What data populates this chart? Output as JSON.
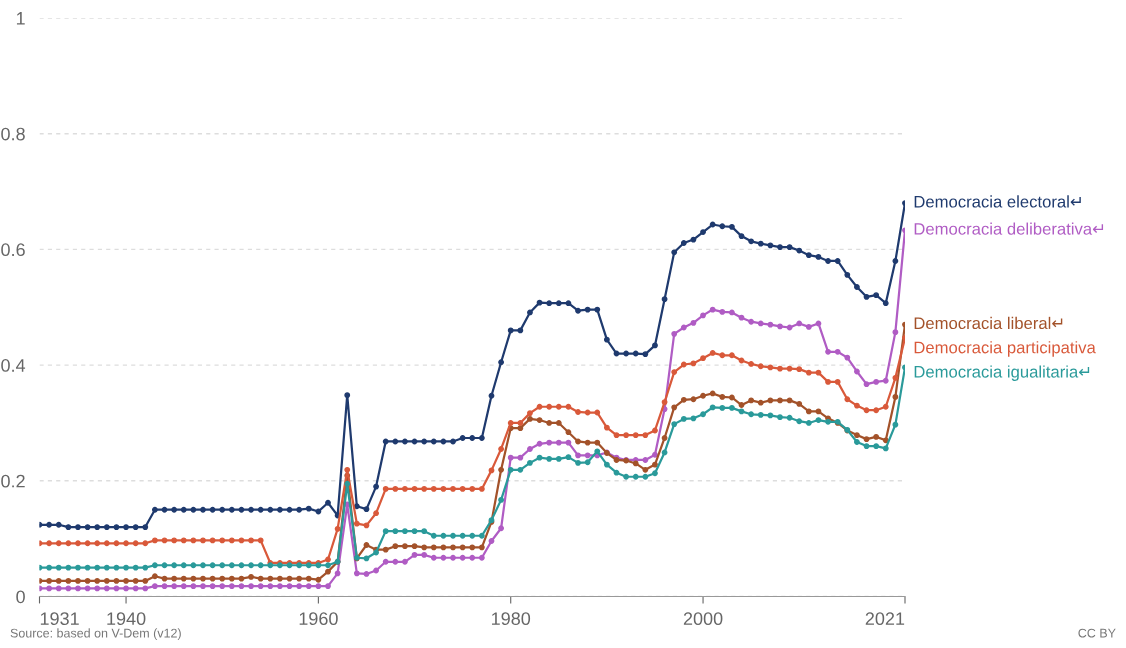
{
  "chart_data": {
    "type": "line",
    "x": [
      1931,
      1932,
      1933,
      1934,
      1935,
      1936,
      1937,
      1938,
      1939,
      1940,
      1941,
      1942,
      1943,
      1944,
      1945,
      1946,
      1947,
      1948,
      1949,
      1950,
      1951,
      1952,
      1953,
      1954,
      1955,
      1956,
      1957,
      1958,
      1959,
      1960,
      1961,
      1962,
      1963,
      1964,
      1965,
      1966,
      1967,
      1968,
      1969,
      1970,
      1971,
      1972,
      1973,
      1974,
      1975,
      1976,
      1977,
      1978,
      1979,
      1980,
      1981,
      1982,
      1983,
      1984,
      1985,
      1986,
      1987,
      1988,
      1989,
      1990,
      1991,
      1992,
      1993,
      1994,
      1995,
      1996,
      1997,
      1998,
      1999,
      2000,
      2001,
      2002,
      2003,
      2004,
      2005,
      2006,
      2007,
      2008,
      2009,
      2010,
      2011,
      2012,
      2013,
      2014,
      2015,
      2016,
      2017,
      2018,
      2019,
      2020,
      2021
    ],
    "series": [
      {
        "name": "Democracia electoral↵",
        "color": "#1f3a6e",
        "values": [
          0.124,
          0.124,
          0.124,
          0.12,
          0.12,
          0.12,
          0.12,
          0.12,
          0.12,
          0.12,
          0.12,
          0.12,
          0.15,
          0.15,
          0.15,
          0.15,
          0.15,
          0.15,
          0.15,
          0.15,
          0.15,
          0.15,
          0.15,
          0.15,
          0.15,
          0.15,
          0.15,
          0.15,
          0.152,
          0.147,
          0.162,
          0.14,
          0.348,
          0.156,
          0.151,
          0.19,
          0.268,
          0.268,
          0.268,
          0.268,
          0.268,
          0.268,
          0.268,
          0.268,
          0.274,
          0.274,
          0.274,
          0.347,
          0.405,
          0.46,
          0.46,
          0.491,
          0.508,
          0.507,
          0.507,
          0.507,
          0.494,
          0.496,
          0.496,
          0.444,
          0.42,
          0.42,
          0.42,
          0.419,
          0.434,
          0.514,
          0.595,
          0.611,
          0.617,
          0.63,
          0.643,
          0.64,
          0.639,
          0.623,
          0.614,
          0.61,
          0.607,
          0.604,
          0.604,
          0.598,
          0.59,
          0.587,
          0.58,
          0.58,
          0.556,
          0.535,
          0.518,
          0.521,
          0.507,
          0.58,
          0.68
        ]
      },
      {
        "name": "Democracia deliberativa↵",
        "color": "#b05cc4",
        "values": [
          0.014,
          0.014,
          0.014,
          0.014,
          0.014,
          0.014,
          0.014,
          0.014,
          0.014,
          0.014,
          0.014,
          0.014,
          0.018,
          0.018,
          0.018,
          0.018,
          0.018,
          0.018,
          0.018,
          0.018,
          0.018,
          0.018,
          0.018,
          0.018,
          0.018,
          0.018,
          0.018,
          0.018,
          0.018,
          0.018,
          0.018,
          0.04,
          0.159,
          0.04,
          0.039,
          0.045,
          0.06,
          0.06,
          0.06,
          0.072,
          0.072,
          0.067,
          0.067,
          0.067,
          0.067,
          0.067,
          0.067,
          0.096,
          0.118,
          0.24,
          0.24,
          0.255,
          0.264,
          0.266,
          0.266,
          0.266,
          0.244,
          0.244,
          0.244,
          0.249,
          0.24,
          0.236,
          0.236,
          0.236,
          0.245,
          0.324,
          0.454,
          0.465,
          0.473,
          0.486,
          0.496,
          0.492,
          0.491,
          0.482,
          0.475,
          0.472,
          0.47,
          0.467,
          0.465,
          0.472,
          0.466,
          0.472,
          0.423,
          0.423,
          0.413,
          0.389,
          0.367,
          0.371,
          0.373,
          0.457,
          0.633
        ]
      },
      {
        "name": "Democracia liberal↵",
        "color": "#a3522a",
        "values": [
          0.027,
          0.027,
          0.027,
          0.027,
          0.027,
          0.027,
          0.027,
          0.027,
          0.027,
          0.027,
          0.027,
          0.027,
          0.035,
          0.031,
          0.031,
          0.031,
          0.031,
          0.031,
          0.031,
          0.031,
          0.031,
          0.031,
          0.034,
          0.031,
          0.031,
          0.031,
          0.031,
          0.031,
          0.031,
          0.029,
          0.043,
          0.06,
          0.209,
          0.066,
          0.089,
          0.081,
          0.081,
          0.087,
          0.087,
          0.087,
          0.085,
          0.085,
          0.085,
          0.085,
          0.085,
          0.085,
          0.085,
          0.129,
          0.219,
          0.291,
          0.291,
          0.307,
          0.305,
          0.3,
          0.3,
          0.284,
          0.268,
          0.266,
          0.266,
          0.248,
          0.236,
          0.235,
          0.23,
          0.219,
          0.228,
          0.274,
          0.327,
          0.34,
          0.341,
          0.347,
          0.351,
          0.345,
          0.344,
          0.331,
          0.339,
          0.335,
          0.339,
          0.339,
          0.339,
          0.333,
          0.32,
          0.32,
          0.308,
          0.3,
          0.287,
          0.279,
          0.272,
          0.276,
          0.27,
          0.345,
          0.47
        ]
      },
      {
        "name": "Democracia participativa",
        "color": "#d9593a",
        "values": [
          0.092,
          0.092,
          0.092,
          0.092,
          0.092,
          0.092,
          0.092,
          0.092,
          0.092,
          0.092,
          0.092,
          0.092,
          0.097,
          0.097,
          0.097,
          0.097,
          0.097,
          0.097,
          0.097,
          0.097,
          0.097,
          0.097,
          0.097,
          0.097,
          0.058,
          0.058,
          0.058,
          0.058,
          0.058,
          0.058,
          0.064,
          0.117,
          0.219,
          0.126,
          0.123,
          0.144,
          0.186,
          0.186,
          0.186,
          0.186,
          0.186,
          0.186,
          0.186,
          0.186,
          0.186,
          0.186,
          0.186,
          0.218,
          0.255,
          0.3,
          0.3,
          0.317,
          0.328,
          0.328,
          0.328,
          0.328,
          0.319,
          0.318,
          0.318,
          0.292,
          0.279,
          0.279,
          0.279,
          0.279,
          0.287,
          0.336,
          0.388,
          0.401,
          0.403,
          0.412,
          0.421,
          0.417,
          0.417,
          0.408,
          0.402,
          0.398,
          0.396,
          0.394,
          0.394,
          0.393,
          0.387,
          0.387,
          0.371,
          0.371,
          0.341,
          0.33,
          0.322,
          0.322,
          0.328,
          0.378,
          0.447
        ]
      },
      {
        "name": "Democracia igualitaria↵",
        "color": "#2a9a9a",
        "values": [
          0.05,
          0.05,
          0.05,
          0.05,
          0.05,
          0.05,
          0.05,
          0.05,
          0.05,
          0.05,
          0.05,
          0.05,
          0.054,
          0.054,
          0.054,
          0.054,
          0.054,
          0.054,
          0.054,
          0.054,
          0.054,
          0.054,
          0.054,
          0.054,
          0.054,
          0.054,
          0.054,
          0.054,
          0.054,
          0.054,
          0.054,
          0.06,
          0.195,
          0.067,
          0.066,
          0.076,
          0.113,
          0.113,
          0.113,
          0.113,
          0.113,
          0.105,
          0.105,
          0.105,
          0.105,
          0.105,
          0.105,
          0.132,
          0.167,
          0.219,
          0.219,
          0.231,
          0.24,
          0.238,
          0.238,
          0.241,
          0.231,
          0.232,
          0.251,
          0.228,
          0.214,
          0.207,
          0.207,
          0.207,
          0.213,
          0.249,
          0.298,
          0.307,
          0.308,
          0.315,
          0.327,
          0.326,
          0.326,
          0.32,
          0.315,
          0.314,
          0.313,
          0.31,
          0.309,
          0.303,
          0.3,
          0.305,
          0.302,
          0.302,
          0.288,
          0.267,
          0.26,
          0.26,
          0.256,
          0.297,
          0.396
        ]
      }
    ],
    "xlim": [
      1931,
      2021
    ],
    "xticks": [
      1931,
      1940,
      1960,
      1980,
      2000,
      2021
    ],
    "ylim": [
      0,
      1
    ],
    "yticks": [
      0,
      0.2,
      0.4,
      0.6,
      0.8,
      1
    ],
    "grid": "y",
    "marker": "circle",
    "line_style": "solid",
    "legend": "right",
    "annotations": [
      "Source: based on V-Dem (v12)",
      "CC BY"
    ]
  }
}
